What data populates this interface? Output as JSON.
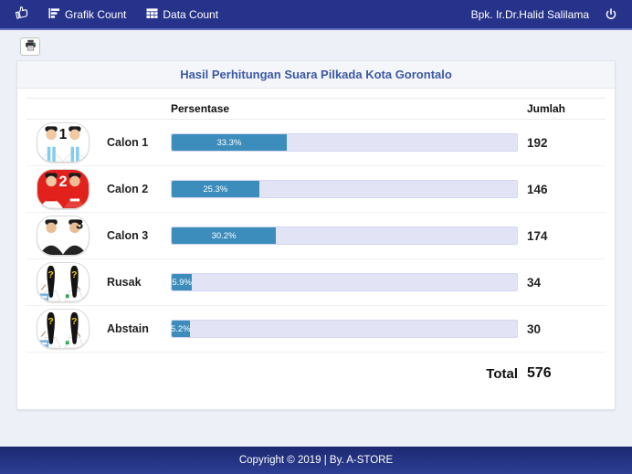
{
  "navbar": {
    "brand_icon": "thumbs-up-icon",
    "menu": [
      {
        "label": "Grafik Count",
        "icon": "bar-chart-icon"
      },
      {
        "label": "Data Count",
        "icon": "table-icon"
      }
    ],
    "user": "Bpk. Ir.Dr.Halid Salilama",
    "power_icon": "power-icon"
  },
  "toolbar": {
    "print_icon": "printer-icon"
  },
  "panel": {
    "title": "Hasil Perhitungan Suara Pilkada Kota Gorontalo"
  },
  "table": {
    "headers": {
      "persentase": "Persentase",
      "jumlah": "Jumlah"
    },
    "rows": [
      {
        "label": "Calon 1",
        "percent": 33.3,
        "percent_label": "33.3%",
        "value": "192",
        "badge": "1",
        "avatar": "candidate-pair-blue"
      },
      {
        "label": "Calon 2",
        "percent": 25.3,
        "percent_label": "25.3%",
        "value": "146",
        "badge": "2",
        "avatar": "candidate-pair-red"
      },
      {
        "label": "Calon 3",
        "percent": 30.2,
        "percent_label": "30.2%",
        "value": "174",
        "badge": "3",
        "avatar": "candidate-pair-black"
      },
      {
        "label": "Rusak",
        "percent": 5.9,
        "percent_label": "5.9%",
        "value": "34",
        "badge": "?",
        "avatar": "unknown-figures"
      },
      {
        "label": "Abstain",
        "percent": 5.2,
        "percent_label": "5.2%",
        "value": "30",
        "badge": "?",
        "avatar": "unknown-figures"
      }
    ],
    "total_label": "Total",
    "total_value": "576"
  },
  "footer": {
    "copyright": "Copyright © 2019 | By. A-STORE"
  },
  "colors": {
    "navbar": "#27338b",
    "navbar_border": "#6470bf",
    "page_background": "#eef0f8",
    "title_text": "#3b58a7",
    "bar_fill": "#3c8dbc",
    "bar_track": "#e2e4f6",
    "avatar2_background": "#e3211c",
    "question_mark_yellow": "#f3c71c",
    "footer_background": "#1c2870"
  },
  "chart_data": {
    "type": "bar",
    "orientation": "horizontal",
    "title": "Hasil Perhitungan Suara Pilkada Kota Gorontalo",
    "categories": [
      "Calon 1",
      "Calon 2",
      "Calon 3",
      "Rusak",
      "Abstain"
    ],
    "series": [
      {
        "name": "Persentase",
        "values": [
          33.3,
          25.3,
          30.2,
          5.9,
          5.2
        ]
      },
      {
        "name": "Jumlah",
        "values": [
          192,
          146,
          174,
          34,
          30
        ]
      }
    ],
    "total": 576,
    "xlim": [
      0,
      100
    ],
    "value_suffix": "%"
  }
}
